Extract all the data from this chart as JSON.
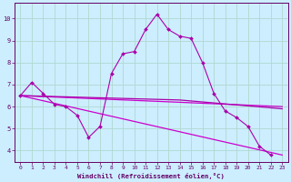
{
  "x_ticks": [
    0,
    1,
    2,
    3,
    4,
    5,
    6,
    7,
    8,
    9,
    10,
    11,
    12,
    13,
    14,
    15,
    16,
    17,
    18,
    19,
    20,
    21,
    22,
    23
  ],
  "line_main": {
    "x": [
      0,
      1,
      2,
      3,
      4,
      5,
      6,
      7,
      8,
      9,
      10,
      11,
      12,
      13,
      14,
      15,
      16,
      17,
      18,
      19,
      20,
      21,
      22
    ],
    "y": [
      6.5,
      7.1,
      6.6,
      6.1,
      6.0,
      5.6,
      4.6,
      5.1,
      7.5,
      8.4,
      8.5,
      9.5,
      10.2,
      9.5,
      9.2,
      9.1,
      8.0,
      6.6,
      5.8,
      5.5,
      5.1,
      4.2,
      3.8
    ],
    "color": "#aa00aa",
    "markersize": 2.0,
    "linewidth": 0.8
  },
  "line_upper": {
    "x": [
      0,
      23
    ],
    "y": [
      6.5,
      6.0
    ],
    "color": "#cc00cc",
    "linewidth": 0.9
  },
  "line_diag": {
    "x": [
      0,
      23
    ],
    "y": [
      6.5,
      3.8
    ],
    "color": "#cc00cc",
    "linewidth": 0.9
  },
  "line_rise": {
    "x": [
      0,
      14,
      23
    ],
    "y": [
      6.5,
      6.3,
      5.9
    ],
    "color": "#aa00aa",
    "linewidth": 0.9
  },
  "ylim": [
    3.5,
    10.7
  ],
  "xlim": [
    -0.5,
    23.5
  ],
  "xlabel": "Windchill (Refroidissement éolien,°C)",
  "yticks": [
    4,
    5,
    6,
    7,
    8,
    9,
    10
  ],
  "bg_color": "#cceeff",
  "grid_color": "#aaddcc",
  "text_color": "#660066",
  "axis_color": "#660066"
}
